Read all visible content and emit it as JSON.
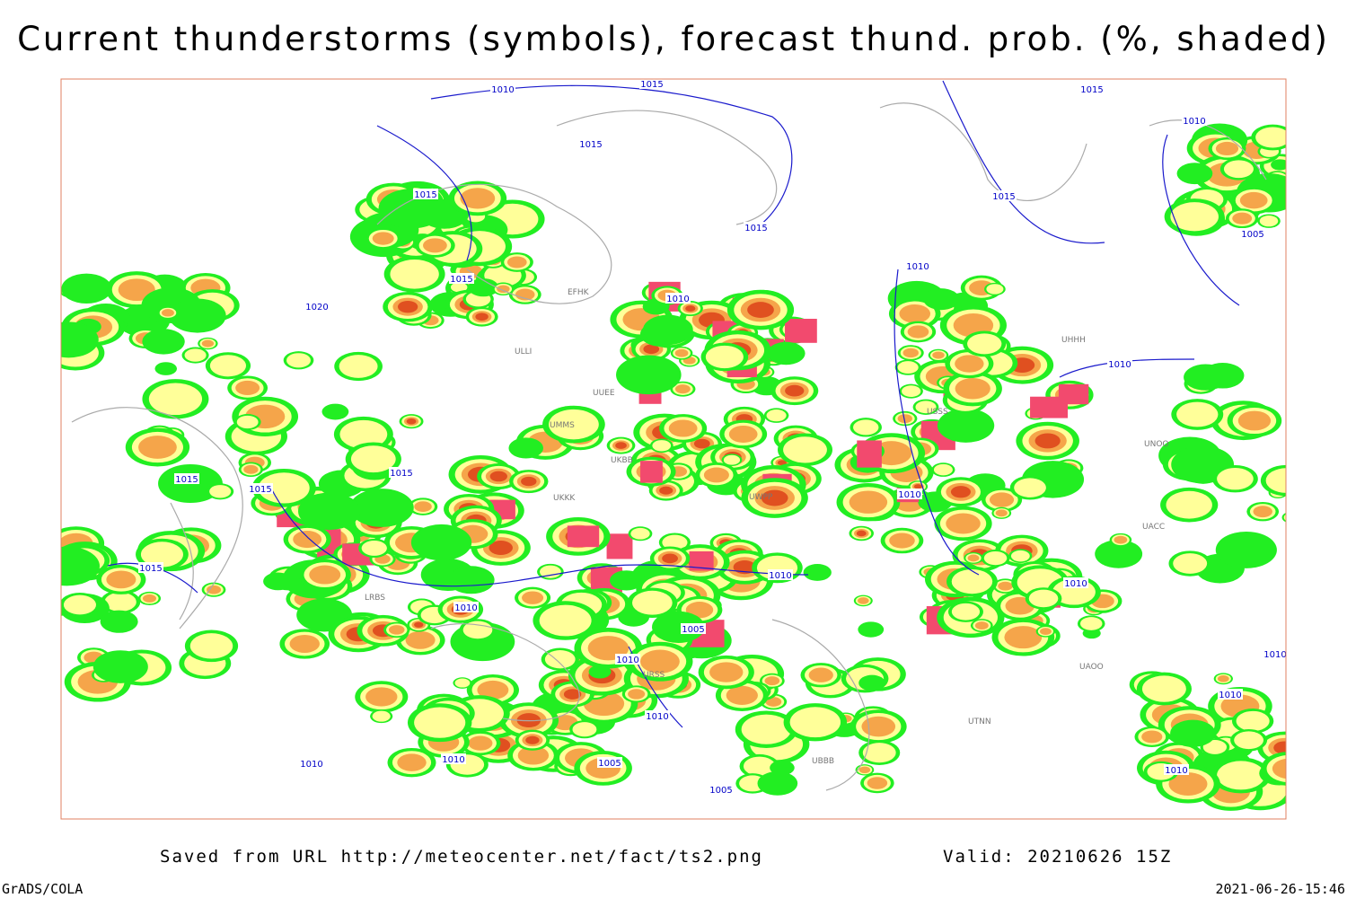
{
  "header": {
    "title": "Current thunderstorms (symbols), forecast thund. prob. (%, shaded)"
  },
  "map": {
    "isobar_labels": [
      "1010",
      "1015",
      "1015",
      "1015",
      "1015",
      "1015",
      "1015",
      "1010",
      "1015",
      "1010",
      "1020",
      "1005",
      "1010",
      "1010",
      "1015",
      "1015",
      "1015",
      "1015",
      "1010",
      "1010",
      "1010",
      "1010",
      "1005",
      "1010",
      "1010",
      "1010",
      "1005",
      "1005",
      "1010",
      "1010",
      "1010",
      "1010"
    ],
    "station_labels": [
      "EFHK",
      "ULLI",
      "UUEE",
      "UKBB",
      "URSS",
      "LRBS",
      "UWPP",
      "UMMS",
      "UKKK",
      "UACC",
      "UNOO",
      "UHHH",
      "USSS",
      "UTNN",
      "UBBB",
      "UAOO"
    ]
  },
  "footer": {
    "saved_from": "Saved from URL http://meteocenter.net/fact/ts2.png",
    "valid": "Valid: 20210626 15Z",
    "software": "GrADS/COLA",
    "timestamp": "2021-06-26-15:46"
  }
}
